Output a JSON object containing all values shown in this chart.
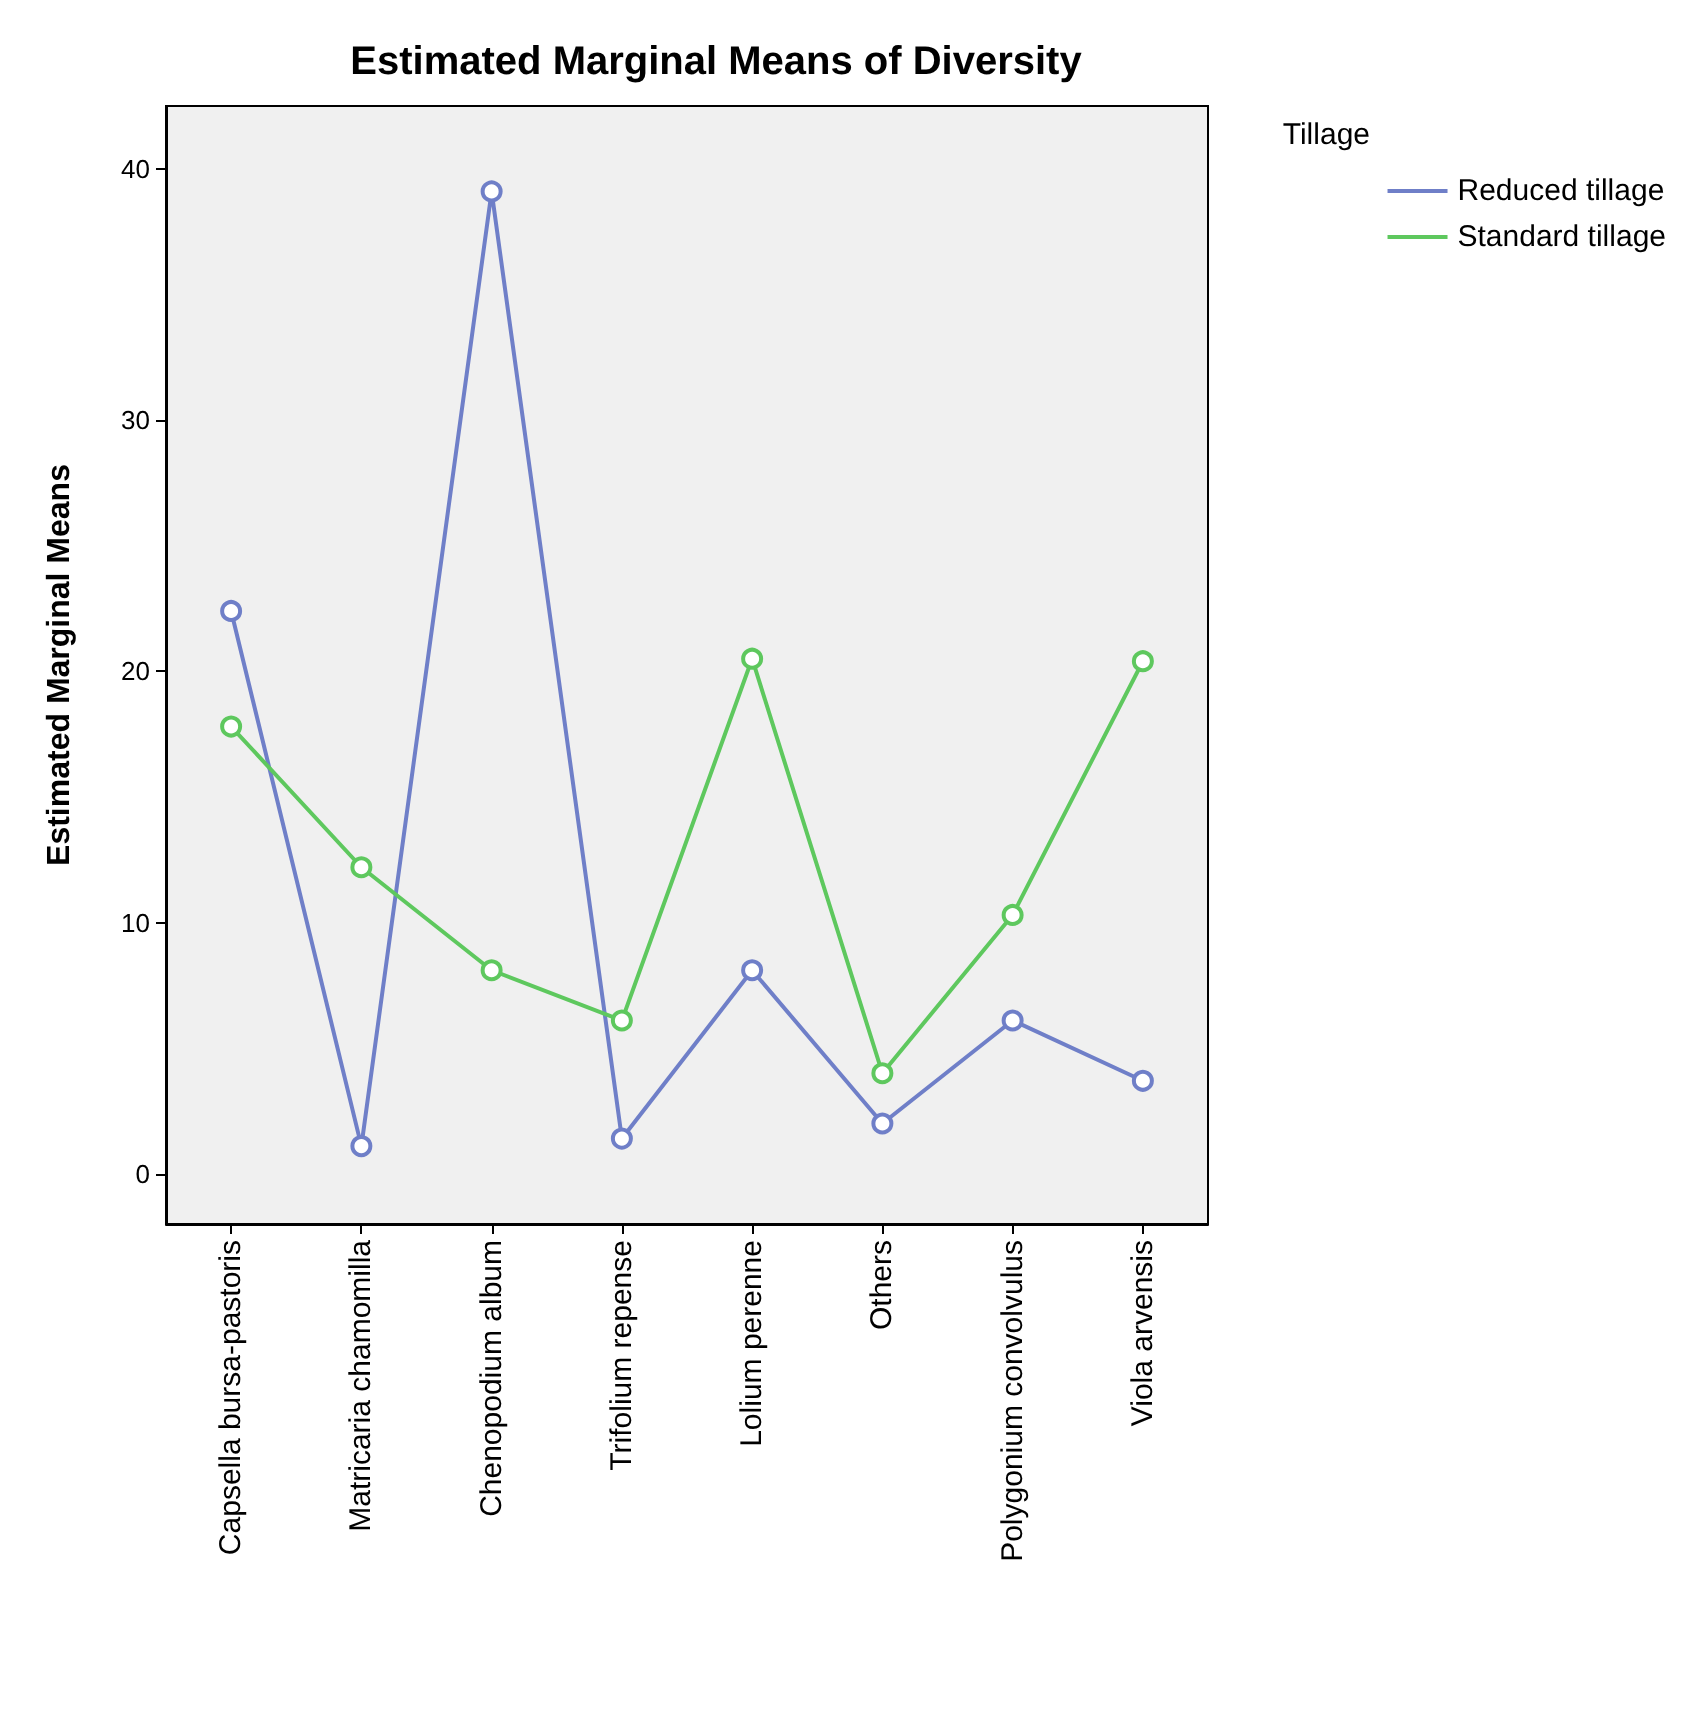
{
  "chart_data": {
    "type": "line",
    "title": "Estimated Marginal Means of Diversity",
    "ylabel": "Estimated Marginal Means",
    "legend_title": "Tillage",
    "legend": "top right",
    "marker": "circle",
    "grid": false,
    "categories": [
      "Capsella bursa-pastoris",
      "Matricaria chamomilla",
      "Chenopodium album",
      "Trifolium repense",
      "Lolium perenne",
      "Others",
      "Polygonium convolvulus",
      "Viola arvensis"
    ],
    "ylim": [
      -2,
      42.5
    ],
    "yticks": [
      0,
      10,
      20,
      30,
      40
    ],
    "series": [
      {
        "name": "Reduced tillage",
        "color": "#6f7fc8",
        "values": [
          22.4,
          1.1,
          39.1,
          1.4,
          8.1,
          2.0,
          6.1,
          3.7
        ]
      },
      {
        "name": "Standard tillage",
        "color": "#5ec85e",
        "values": [
          17.8,
          12.2,
          8.1,
          6.1,
          20.5,
          4.0,
          10.3,
          20.4
        ]
      }
    ]
  }
}
